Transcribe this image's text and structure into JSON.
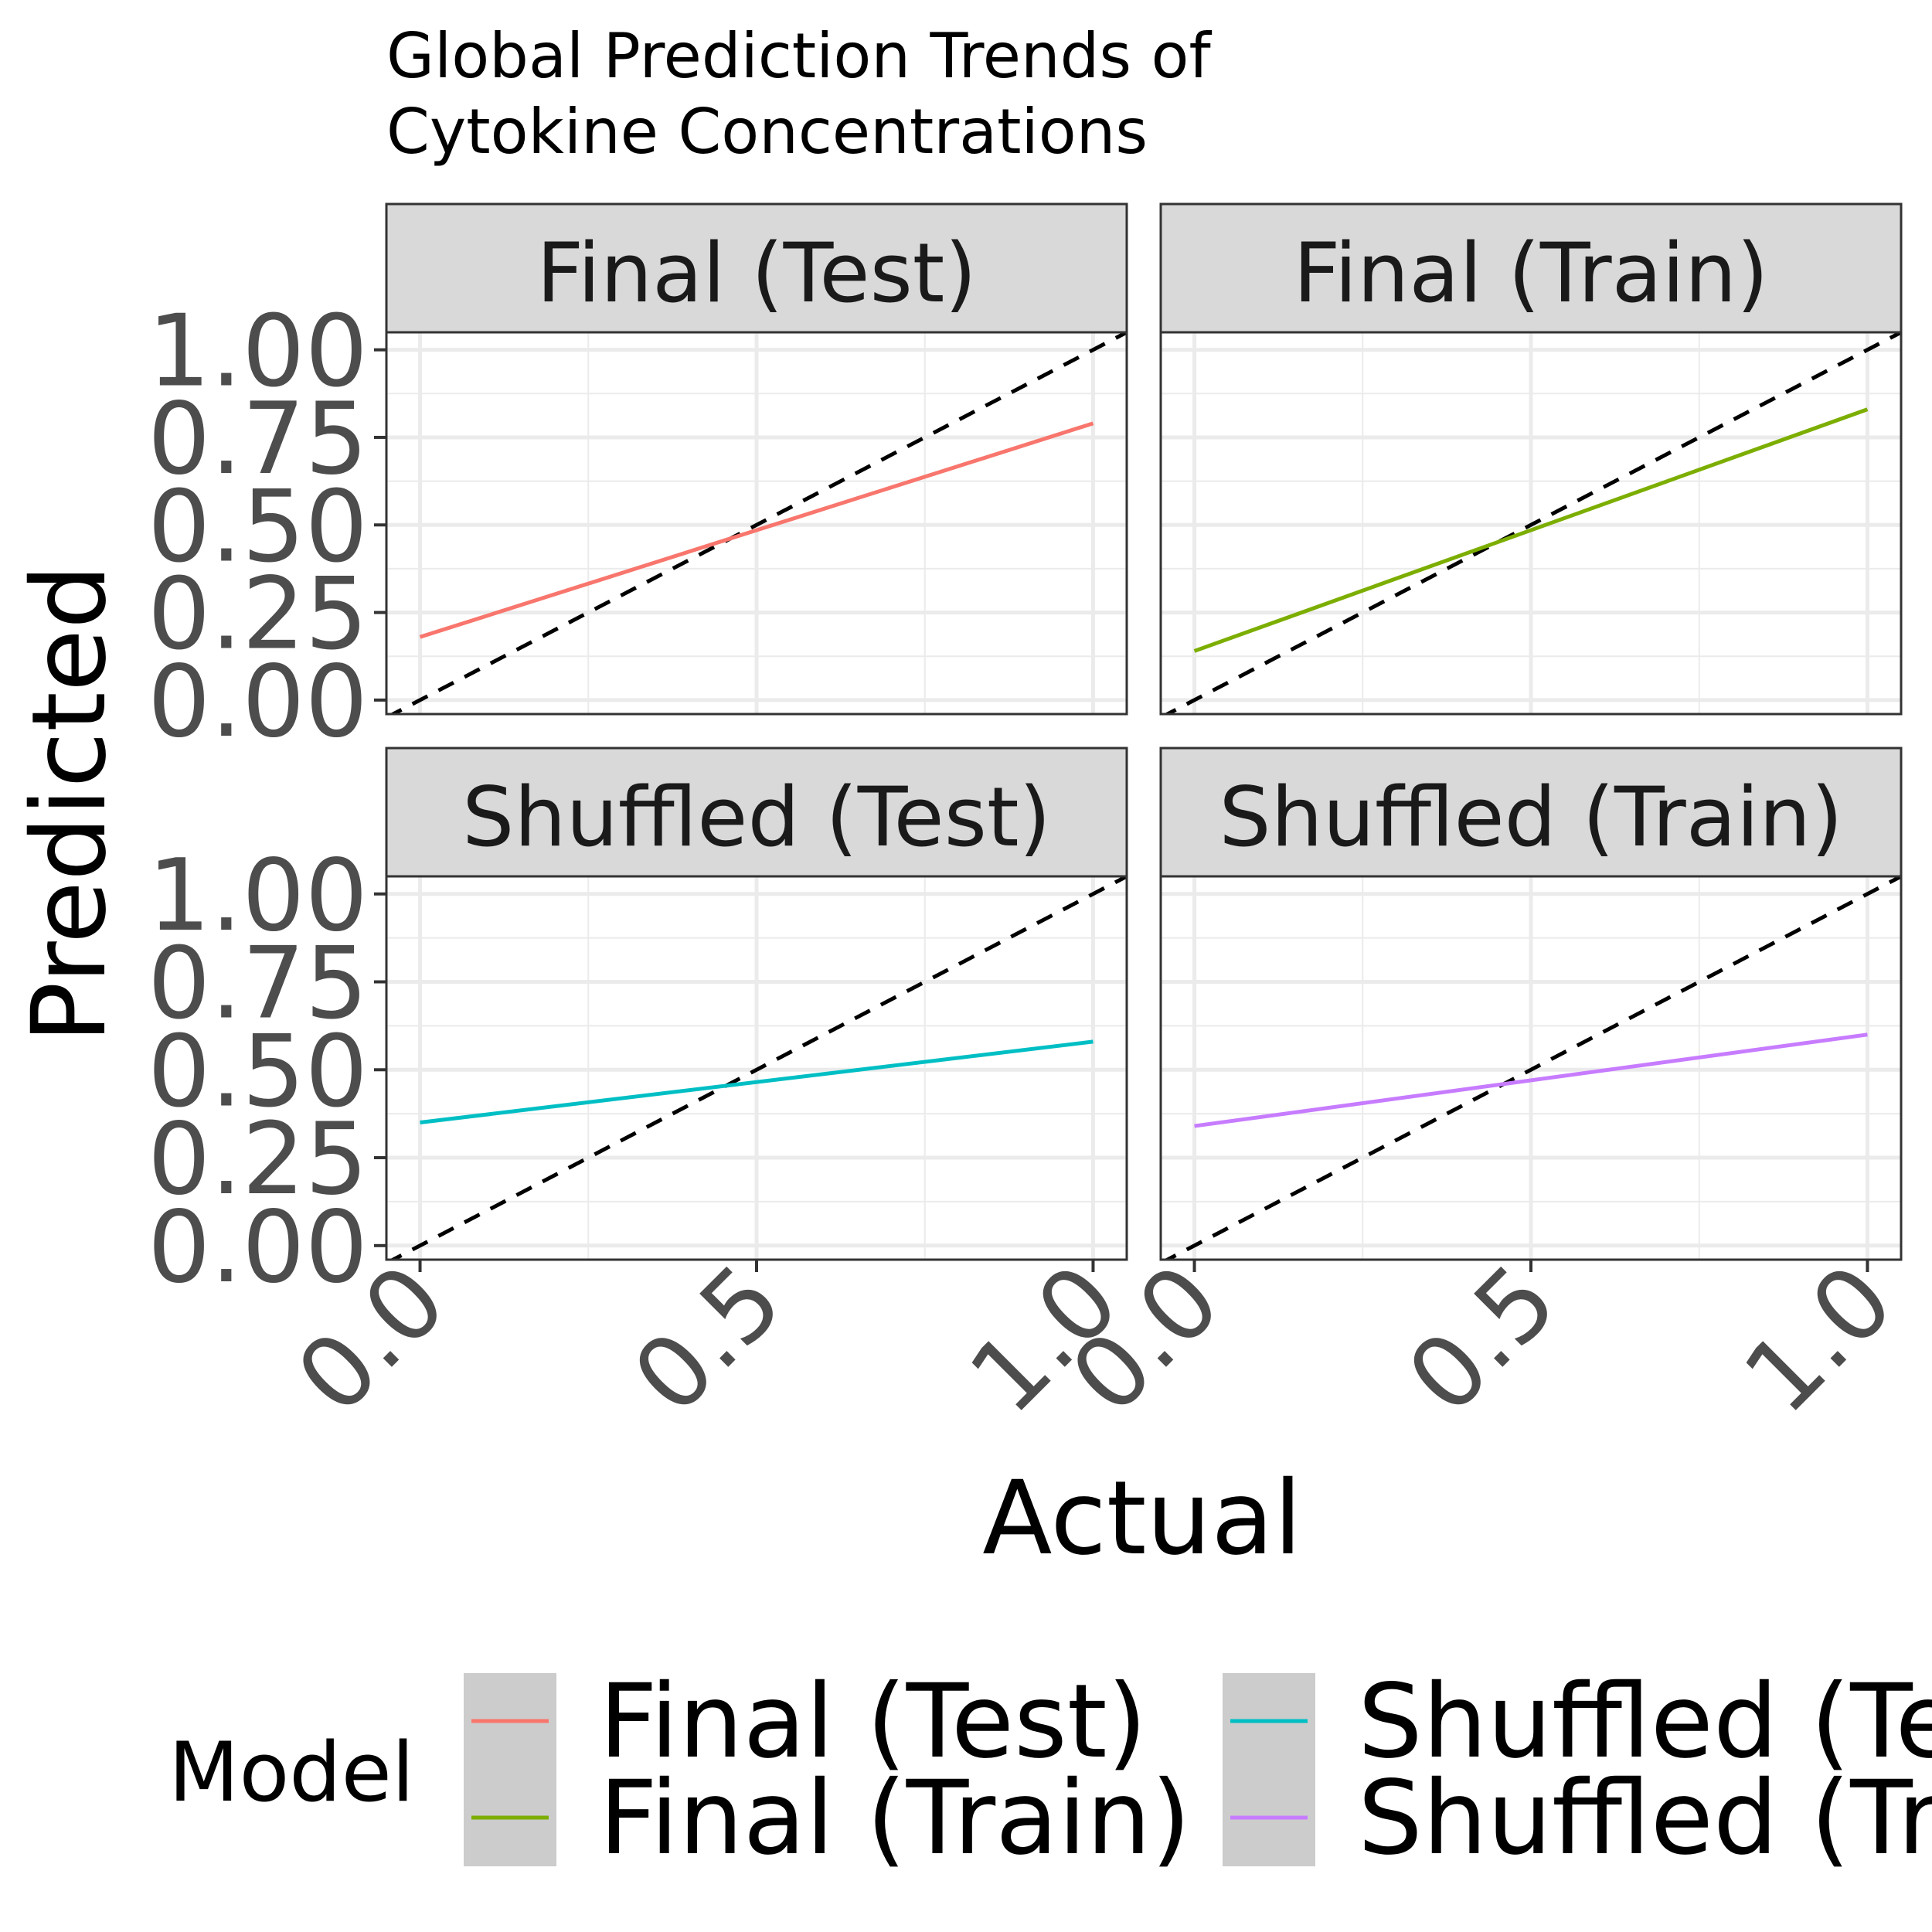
{
  "chart_data": {
    "type": "line",
    "title": [
      "Global Prediction Trends of",
      "Cytokine Concentrations"
    ],
    "xlabel": "Actual",
    "ylabel": "Predicted",
    "x_ticks": [
      "0.0",
      "0.5",
      "1.0"
    ],
    "y_ticks": [
      "0.00",
      "0.25",
      "0.50",
      "0.75",
      "1.00"
    ],
    "xlim": [
      -0.05,
      1.05
    ],
    "ylim": [
      -0.04,
      1.05
    ],
    "grid": true,
    "reference_line": {
      "style": "dashed",
      "color": "#000000",
      "slope": 1,
      "intercept": 0
    },
    "legend": {
      "title": "Model",
      "position": "bottom",
      "entries": [
        "Final (Test)",
        "Final (Train)",
        "Shuffled (Test)",
        "Shuffled (Train)"
      ]
    },
    "panels": [
      {
        "name": "Final (Test)",
        "color": "#F8766D",
        "x": [
          0,
          1
        ],
        "y": [
          0.18,
          0.79
        ]
      },
      {
        "name": "Final (Train)",
        "color": "#7CAE00",
        "x": [
          0,
          1
        ],
        "y": [
          0.14,
          0.83
        ]
      },
      {
        "name": "Shuffled (Test)",
        "color": "#00BFC4",
        "x": [
          0,
          1
        ],
        "y": [
          0.35,
          0.58
        ]
      },
      {
        "name": "Shuffled (Train)",
        "color": "#C77CFF",
        "x": [
          0,
          1
        ],
        "y": [
          0.34,
          0.6
        ]
      }
    ]
  }
}
